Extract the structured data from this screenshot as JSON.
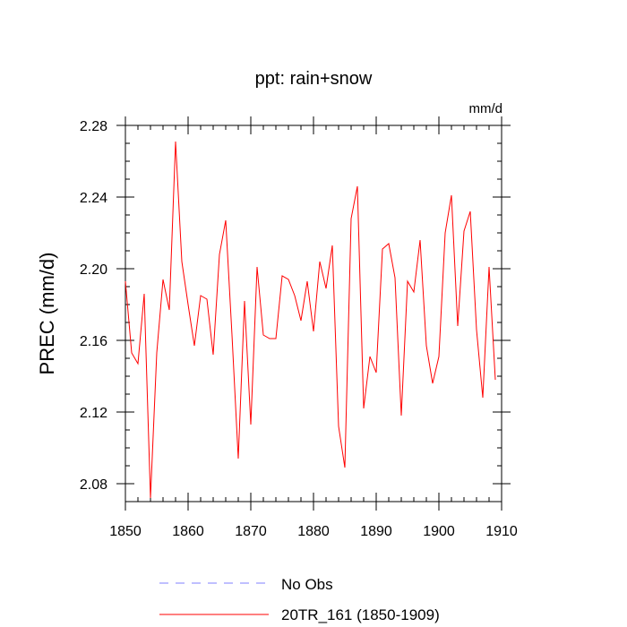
{
  "chart_data": {
    "type": "line",
    "title": "ppt: rain+snow",
    "units_label": "mm/d",
    "ylabel": "PREC  (mm/d)",
    "xlabel": "",
    "xlim": [
      1850,
      1910
    ],
    "ylim": [
      2.07,
      2.28
    ],
    "x_ticks": [
      1850,
      1860,
      1870,
      1880,
      1890,
      1900,
      1910
    ],
    "x_tick_labels": [
      "1850",
      "1860",
      "1870",
      "1880",
      "1890",
      "1900",
      "1910"
    ],
    "y_ticks": [
      2.08,
      2.12,
      2.16,
      2.2,
      2.24,
      2.28
    ],
    "y_tick_labels": [
      "2.08",
      "2.12",
      "2.16",
      "2.20",
      "2.24",
      "2.28"
    ],
    "grid": false,
    "legend_position": "bottom",
    "legend": [
      {
        "label": "No Obs",
        "color": "#7f7fff",
        "style": "dashed"
      },
      {
        "label": "20TR_161 (1850-1909)",
        "color": "#ff0000",
        "style": "solid"
      }
    ],
    "series": [
      {
        "name": "20TR_161 (1850-1909)",
        "color": "#ff0000",
        "x": [
          1850,
          1851,
          1852,
          1853,
          1854,
          1855,
          1856,
          1857,
          1858,
          1859,
          1860,
          1861,
          1862,
          1863,
          1864,
          1865,
          1866,
          1867,
          1868,
          1869,
          1870,
          1871,
          1872,
          1873,
          1874,
          1875,
          1876,
          1877,
          1878,
          1879,
          1880,
          1881,
          1882,
          1883,
          1884,
          1885,
          1886,
          1887,
          1888,
          1889,
          1890,
          1891,
          1892,
          1893,
          1894,
          1895,
          1896,
          1897,
          1898,
          1899,
          1900,
          1901,
          1902,
          1903,
          1904,
          1905,
          1906,
          1907,
          1908,
          1909
        ],
        "values": [
          2.193,
          2.153,
          2.147,
          2.186,
          2.072,
          2.153,
          2.194,
          2.177,
          2.271,
          2.204,
          2.18,
          2.157,
          2.185,
          2.183,
          2.152,
          2.208,
          2.227,
          2.163,
          2.094,
          2.182,
          2.113,
          2.201,
          2.163,
          2.161,
          2.161,
          2.196,
          2.194,
          2.185,
          2.171,
          2.193,
          2.165,
          2.204,
          2.189,
          2.213,
          2.112,
          2.089,
          2.228,
          2.246,
          2.122,
          2.151,
          2.142,
          2.211,
          2.214,
          2.195,
          2.118,
          2.193,
          2.187,
          2.216,
          2.157,
          2.136,
          2.151,
          2.22,
          2.241,
          2.168,
          2.221,
          2.232,
          2.166,
          2.128,
          2.201,
          2.138
        ]
      }
    ]
  }
}
